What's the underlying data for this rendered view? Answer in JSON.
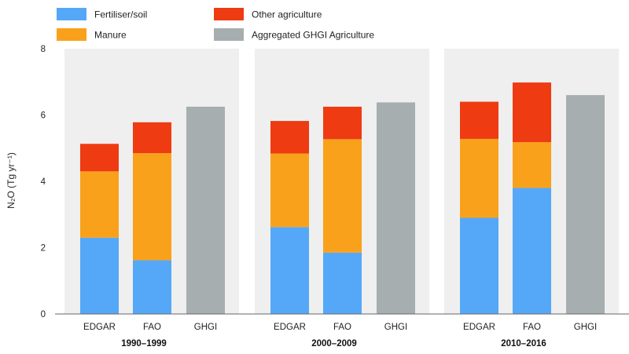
{
  "chart_data": {
    "type": "bar",
    "stacked": true,
    "ylabel": "N₂O (Tg yr⁻¹)",
    "ylim": [
      0,
      8
    ],
    "yticks": [
      0,
      2,
      4,
      6,
      8
    ],
    "legend_position": "top-left",
    "groups": [
      "1990–1999",
      "2000–2009",
      "2010–2016"
    ],
    "categories": [
      "EDGAR",
      "FAO",
      "GHGI"
    ],
    "series": [
      {
        "name": "Fertiliser/soil",
        "color": "#55a8f7",
        "values": [
          [
            2.3,
            1.62,
            0
          ],
          [
            2.62,
            1.85,
            0
          ],
          [
            2.9,
            3.8,
            0
          ]
        ]
      },
      {
        "name": "Manure",
        "color": "#f9a11b",
        "values": [
          [
            2.0,
            3.23,
            0
          ],
          [
            2.22,
            3.42,
            0
          ],
          [
            2.38,
            1.38,
            0
          ]
        ]
      },
      {
        "name": "Other agriculture",
        "color": "#ee3b12",
        "values": [
          [
            0.83,
            0.93,
            0
          ],
          [
            0.98,
            0.98,
            0
          ],
          [
            1.12,
            1.8,
            0
          ]
        ]
      },
      {
        "name": "Aggregated GHGI Agriculture",
        "color": "#a6aeaf",
        "values": [
          [
            0,
            0,
            6.25
          ],
          [
            0,
            0,
            6.38
          ],
          [
            0,
            0,
            6.6
          ]
        ]
      }
    ]
  }
}
